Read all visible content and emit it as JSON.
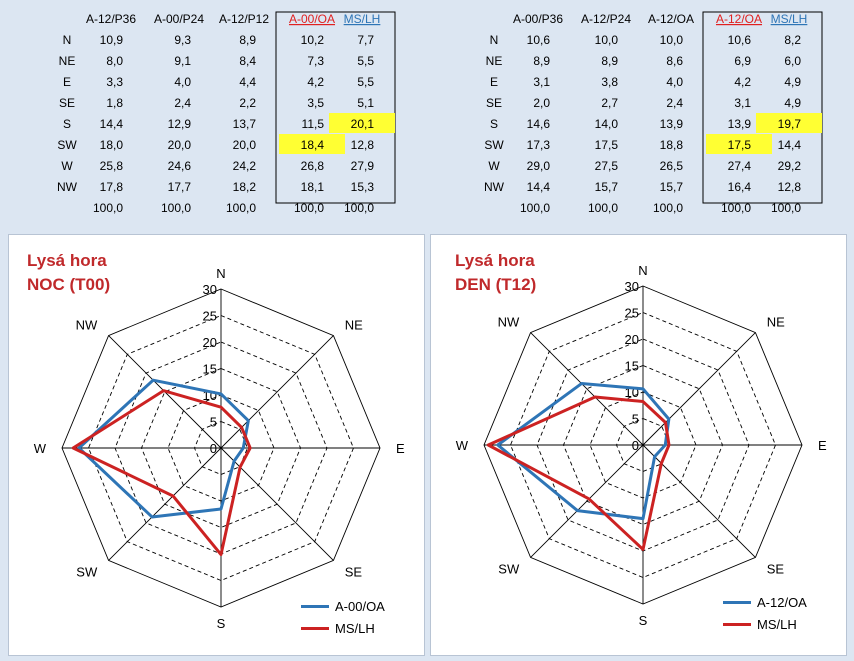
{
  "colors": {
    "blue": "#2e75b6",
    "red": "#cc2222",
    "highlight": "#ffff33",
    "red_header": "#e02020"
  },
  "tables": [
    {
      "columns": [
        "A-12/P36",
        "A-00/P24",
        "A-12/P12",
        "A-00/OA",
        "MS/LH"
      ],
      "rows": [
        {
          "dir": "N",
          "vals": [
            "10,9",
            "9,3",
            "8,9",
            "10,2",
            "7,7"
          ]
        },
        {
          "dir": "NE",
          "vals": [
            "8,0",
            "9,1",
            "8,4",
            "7,3",
            "5,5"
          ]
        },
        {
          "dir": "E",
          "vals": [
            "3,3",
            "4,0",
            "4,4",
            "4,2",
            "5,5"
          ]
        },
        {
          "dir": "SE",
          "vals": [
            "1,8",
            "2,4",
            "2,2",
            "3,5",
            "5,1"
          ]
        },
        {
          "dir": "S",
          "vals": [
            "14,4",
            "12,9",
            "13,7",
            "11,5",
            "20,1"
          ]
        },
        {
          "dir": "SW",
          "vals": [
            "18,0",
            "20,0",
            "20,0",
            "18,4",
            "12,8"
          ]
        },
        {
          "dir": "W",
          "vals": [
            "25,8",
            "24,6",
            "24,2",
            "26,8",
            "27,9"
          ]
        },
        {
          "dir": "NW",
          "vals": [
            "17,8",
            "17,7",
            "18,2",
            "18,1",
            "15,3"
          ]
        }
      ],
      "totals": [
        "100,0",
        "100,0",
        "100,0",
        "100,0",
        "100,0"
      ],
      "highlights": [
        [
          4,
          4
        ],
        [
          5,
          3
        ]
      ]
    },
    {
      "columns": [
        "A-00/P36",
        "A-12/P24",
        "A-12/OA",
        "A-12/OA",
        "MS/LH"
      ],
      "rows": [
        {
          "dir": "N",
          "vals": [
            "10,6",
            "10,0",
            "10,0",
            "10,6",
            "8,2"
          ]
        },
        {
          "dir": "NE",
          "vals": [
            "8,9",
            "8,9",
            "8,6",
            "6,9",
            "6,0"
          ]
        },
        {
          "dir": "E",
          "vals": [
            "3,1",
            "3,8",
            "4,0",
            "4,2",
            "4,9"
          ]
        },
        {
          "dir": "SE",
          "vals": [
            "2,0",
            "2,7",
            "2,4",
            "3,1",
            "4,9"
          ]
        },
        {
          "dir": "S",
          "vals": [
            "14,6",
            "14,0",
            "13,9",
            "13,9",
            "19,7"
          ]
        },
        {
          "dir": "SW",
          "vals": [
            "17,3",
            "17,5",
            "18,8",
            "17,5",
            "14,4"
          ]
        },
        {
          "dir": "W",
          "vals": [
            "29,0",
            "27,5",
            "26,5",
            "27,4",
            "29,2"
          ]
        },
        {
          "dir": "NW",
          "vals": [
            "14,4",
            "15,7",
            "15,7",
            "16,4",
            "12,8"
          ]
        }
      ],
      "totals": [
        "100,0",
        "100,0",
        "100,0",
        "100,0",
        "100,0"
      ],
      "highlights": [
        [
          4,
          4
        ],
        [
          5,
          3
        ]
      ]
    }
  ],
  "chart_data": [
    {
      "type": "radar",
      "title": [
        "Lysá hora",
        "NOC (T00)"
      ],
      "categories": [
        "N",
        "NE",
        "E",
        "SE",
        "S",
        "SW",
        "W",
        "NW"
      ],
      "rlim": [
        0,
        30
      ],
      "ticks": [
        "0",
        "5",
        "10",
        "15",
        "20",
        "25",
        "30"
      ],
      "tick_values": [
        0,
        5,
        10,
        15,
        20,
        25,
        30
      ],
      "legend": "bottom-right",
      "grid": true,
      "series": [
        {
          "name": "A-00/OA",
          "values": [
            10.2,
            7.3,
            4.2,
            3.5,
            11.5,
            18.4,
            26.8,
            18.1
          ],
          "color": "#2e75b6"
        },
        {
          "name": "MS/LH",
          "values": [
            7.7,
            5.5,
            5.5,
            5.1,
            20.1,
            12.8,
            27.9,
            15.3
          ],
          "color": "#cc2222"
        }
      ]
    },
    {
      "type": "radar",
      "title": [
        "Lysá hora",
        "DEN (T12)"
      ],
      "categories": [
        "N",
        "NE",
        "E",
        "SE",
        "S",
        "SW",
        "W",
        "NW"
      ],
      "rlim": [
        0,
        30
      ],
      "ticks": [
        "0",
        "5",
        "10",
        "15",
        "20",
        "25",
        "30"
      ],
      "tick_values": [
        0,
        5,
        10,
        15,
        20,
        25,
        30
      ],
      "legend": "bottom-right",
      "grid": true,
      "series": [
        {
          "name": "A-12/OA",
          "values": [
            10.6,
            6.9,
            4.2,
            3.1,
            13.9,
            17.5,
            27.4,
            16.4
          ],
          "color": "#2e75b6"
        },
        {
          "name": "MS/LH",
          "values": [
            8.2,
            6.0,
            4.9,
            4.9,
            19.7,
            14.4,
            29.2,
            12.8
          ],
          "color": "#cc2222"
        }
      ]
    }
  ]
}
